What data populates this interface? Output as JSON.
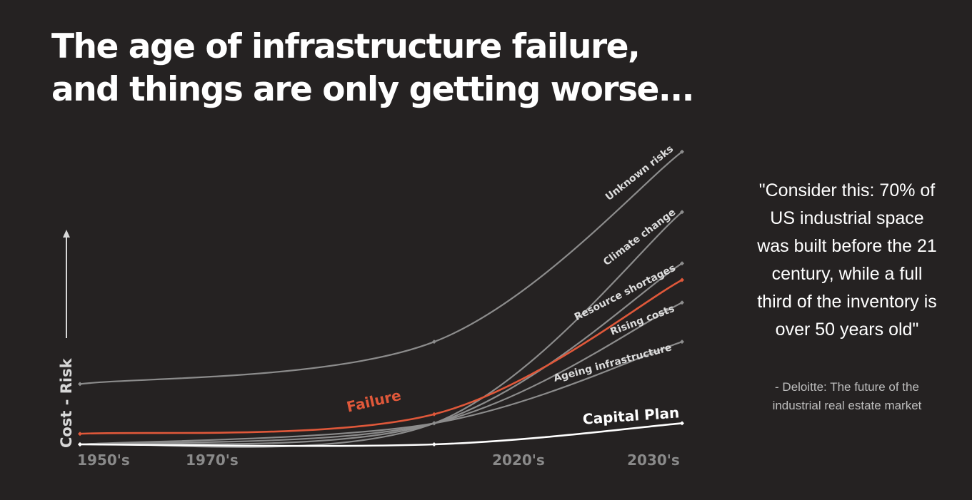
{
  "title": {
    "line1": "The age of infrastructure failure,",
    "line2": "and things are only getting worse..."
  },
  "quote": {
    "lines": [
      "\"Consider this: 70% of",
      "US industrial space",
      "was built before the 21",
      "century, while a full",
      "third of the inventory is",
      "over 50 years old\""
    ],
    "source_lines": [
      "- Deloitte: The future of the",
      "industrial real estate market"
    ]
  },
  "colors": {
    "background": "#252222",
    "series_gray": "#8c8c8c",
    "failure": "#e0583a",
    "capital_plan": "#ffffff",
    "tick_label": "#8a8a8a",
    "axis": "#d8d8d8"
  },
  "chart_data": {
    "type": "line",
    "title": "",
    "xlabel": "",
    "ylabel": "Cost - Risk",
    "categories": [
      "1950's",
      "1970's",
      "2020's",
      "2030's"
    ],
    "x": [
      1950,
      2000,
      2035
    ],
    "xlim": [
      1950,
      2035
    ],
    "ylim": [
      0,
      100
    ],
    "grid": false,
    "legend": "none (series labelled inline along lines)",
    "series": [
      {
        "name": "Unknown risks",
        "color": "#8c8c8c",
        "values": [
          20,
          34,
          97
        ]
      },
      {
        "name": "Climate change",
        "color": "#8c8c8c",
        "values": [
          0,
          7,
          77
        ]
      },
      {
        "name": "Resource shortages",
        "color": "#8c8c8c",
        "values": [
          0,
          7,
          60
        ]
      },
      {
        "name": "Failure",
        "color": "#e0583a",
        "values": [
          3.5,
          10,
          54.5
        ]
      },
      {
        "name": "Rising costs",
        "color": "#8c8c8c",
        "values": [
          0,
          7,
          47
        ]
      },
      {
        "name": "Ageing infrastructure",
        "color": "#8c8c8c",
        "values": [
          0,
          7,
          34
        ]
      },
      {
        "name": "Capital Plan",
        "color": "#ffffff",
        "values": [
          0,
          0,
          7
        ]
      }
    ]
  }
}
